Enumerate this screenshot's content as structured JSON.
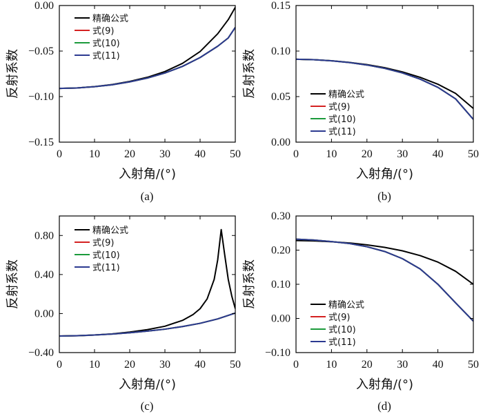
{
  "chart_data": [
    {
      "type": "line",
      "panel_label": "(a)",
      "xlabel": "入射角/(°)",
      "ylabel": "反射系数",
      "xlim": [
        0,
        50
      ],
      "ylim": [
        -0.15,
        0.0
      ],
      "xticks": [
        "0",
        "10",
        "20",
        "30",
        "40",
        "50"
      ],
      "yticks": [
        "−0.15",
        "−0.10",
        "−0.05",
        "0.00"
      ],
      "ytick_values": [
        -0.15,
        -0.1,
        -0.05,
        0.0
      ],
      "legend_position": "top-left",
      "series": [
        {
          "name": "精确公式",
          "color": "#000000",
          "x": [
            0,
            5,
            10,
            15,
            20,
            25,
            30,
            35,
            40,
            45,
            48,
            50
          ],
          "y": [
            -0.091,
            -0.0905,
            -0.089,
            -0.0867,
            -0.0833,
            -0.0788,
            -0.0725,
            -0.0635,
            -0.0505,
            -0.031,
            -0.0155,
            -0.002
          ]
        },
        {
          "name": "式(9)",
          "color": "#d42020",
          "x": [
            0,
            5,
            10,
            15,
            20,
            25,
            30,
            35,
            40,
            45,
            48,
            50
          ],
          "y": [
            -0.091,
            -0.0905,
            -0.0891,
            -0.087,
            -0.0838,
            -0.0797,
            -0.0741,
            -0.0668,
            -0.0571,
            -0.0447,
            -0.0356,
            -0.024
          ]
        },
        {
          "name": "式(10)",
          "color": "#1a9a3a",
          "x": [
            0,
            5,
            10,
            15,
            20,
            25,
            30,
            35,
            40,
            45,
            48,
            50
          ],
          "y": [
            -0.091,
            -0.0905,
            -0.0891,
            -0.087,
            -0.0838,
            -0.0797,
            -0.0741,
            -0.0668,
            -0.0571,
            -0.0447,
            -0.0356,
            -0.024
          ]
        },
        {
          "name": "式(11)",
          "color": "#2b3990",
          "x": [
            0,
            5,
            10,
            15,
            20,
            25,
            30,
            35,
            40,
            45,
            48,
            50
          ],
          "y": [
            -0.091,
            -0.0905,
            -0.0891,
            -0.087,
            -0.0838,
            -0.0797,
            -0.0741,
            -0.0668,
            -0.0571,
            -0.0447,
            -0.0356,
            -0.024
          ]
        }
      ]
    },
    {
      "type": "line",
      "panel_label": "(b)",
      "xlabel": "入射角/(°)",
      "ylabel": "反射系数",
      "xlim": [
        0,
        50
      ],
      "ylim": [
        0.0,
        0.15
      ],
      "xticks": [
        "0",
        "10",
        "20",
        "30",
        "40",
        "50"
      ],
      "yticks": [
        "0.00",
        "0.05",
        "0.10",
        "0.15"
      ],
      "ytick_values": [
        0.0,
        0.05,
        0.1,
        0.15
      ],
      "legend_position": "bottom-left",
      "series": [
        {
          "name": "精确公式",
          "color": "#000000",
          "x": [
            0,
            5,
            10,
            15,
            20,
            25,
            30,
            35,
            40,
            45,
            50
          ],
          "y": [
            0.091,
            0.0905,
            0.0894,
            0.0876,
            0.0851,
            0.0817,
            0.0771,
            0.0712,
            0.0636,
            0.0535,
            0.037
          ]
        },
        {
          "name": "式(9)",
          "color": "#d42020",
          "x": [
            0,
            5,
            10,
            15,
            20,
            25,
            30,
            35,
            40,
            45,
            50
          ],
          "y": [
            0.091,
            0.0905,
            0.0893,
            0.0874,
            0.0847,
            0.081,
            0.076,
            0.0692,
            0.0602,
            0.0475,
            0.025
          ]
        },
        {
          "name": "式(10)",
          "color": "#1a9a3a",
          "x": [
            0,
            5,
            10,
            15,
            20,
            25,
            30,
            35,
            40,
            45,
            50
          ],
          "y": [
            0.091,
            0.0905,
            0.0893,
            0.0874,
            0.0847,
            0.081,
            0.076,
            0.0692,
            0.0602,
            0.0475,
            0.025
          ]
        },
        {
          "name": "式(11)",
          "color": "#2b3990",
          "x": [
            0,
            5,
            10,
            15,
            20,
            25,
            30,
            35,
            40,
            45,
            50
          ],
          "y": [
            0.091,
            0.0905,
            0.0893,
            0.0874,
            0.0847,
            0.081,
            0.076,
            0.0692,
            0.0602,
            0.0475,
            0.025
          ]
        }
      ]
    },
    {
      "type": "line",
      "panel_label": "(c)",
      "xlabel": "入射角/(°)",
      "ylabel": "反射系数",
      "xlim": [
        0,
        50
      ],
      "ylim": [
        -0.4,
        1.0
      ],
      "xticks": [
        "0",
        "10",
        "20",
        "30",
        "40",
        "50"
      ],
      "yticks": [
        "−0.40",
        "0.00",
        "0.40",
        "0.80"
      ],
      "ytick_values": [
        -0.4,
        0.0,
        0.4,
        0.8
      ],
      "legend_position": "top-left",
      "series": [
        {
          "name": "精确公式",
          "color": "#000000",
          "x": [
            0,
            5,
            10,
            15,
            20,
            25,
            30,
            35,
            38,
            40,
            42,
            44,
            45,
            46,
            47,
            48,
            49,
            50
          ],
          "y": [
            -0.23,
            -0.228,
            -0.22,
            -0.208,
            -0.19,
            -0.165,
            -0.13,
            -0.07,
            -0.01,
            0.05,
            0.15,
            0.35,
            0.55,
            0.86,
            0.6,
            0.35,
            0.18,
            0.05
          ]
        },
        {
          "name": "式(9)",
          "color": "#d42020",
          "x": [
            0,
            5,
            10,
            15,
            20,
            25,
            30,
            35,
            40,
            45,
            50
          ],
          "y": [
            -0.23,
            -0.227,
            -0.22,
            -0.21,
            -0.197,
            -0.18,
            -0.16,
            -0.133,
            -0.1,
            -0.055,
            0.005
          ]
        },
        {
          "name": "式(10)",
          "color": "#1a9a3a",
          "x": [
            0,
            5,
            10,
            15,
            20,
            25,
            30,
            35,
            40,
            45,
            50
          ],
          "y": [
            -0.23,
            -0.227,
            -0.22,
            -0.21,
            -0.197,
            -0.18,
            -0.16,
            -0.133,
            -0.1,
            -0.055,
            0.005
          ]
        },
        {
          "name": "式(11)",
          "color": "#2b3990",
          "x": [
            0,
            5,
            10,
            15,
            20,
            25,
            30,
            35,
            40,
            45,
            50
          ],
          "y": [
            -0.23,
            -0.227,
            -0.22,
            -0.21,
            -0.197,
            -0.18,
            -0.16,
            -0.133,
            -0.1,
            -0.055,
            0.005
          ]
        }
      ]
    },
    {
      "type": "line",
      "panel_label": "(d)",
      "xlabel": "入射角/(°)",
      "ylabel": "反射系数",
      "xlim": [
        0,
        50
      ],
      "ylim": [
        -0.1,
        0.3
      ],
      "xticks": [
        "0",
        "10",
        "20",
        "30",
        "40",
        "50"
      ],
      "yticks": [
        "−0.10",
        "0.00",
        "0.10",
        "0.20",
        "0.30"
      ],
      "ytick_values": [
        -0.1,
        0.0,
        0.1,
        0.2,
        0.3
      ],
      "legend_position": "bottom-left",
      "series": [
        {
          "name": "精确公式",
          "color": "#000000",
          "x": [
            0,
            5,
            10,
            15,
            20,
            25,
            30,
            35,
            40,
            45,
            50
          ],
          "y": [
            0.228,
            0.227,
            0.2245,
            0.221,
            0.2155,
            0.208,
            0.198,
            0.184,
            0.165,
            0.138,
            0.1
          ]
        },
        {
          "name": "式(9)",
          "color": "#d42020",
          "x": [
            0,
            5,
            10,
            15,
            20,
            25,
            30,
            35,
            40,
            45,
            50
          ],
          "y": [
            0.232,
            0.2295,
            0.225,
            0.2195,
            0.21,
            0.196,
            0.175,
            0.145,
            0.1,
            0.0455,
            -0.008
          ]
        },
        {
          "name": "式(10)",
          "color": "#1a9a3a",
          "x": [
            0,
            5,
            10,
            15,
            20,
            25,
            30,
            35,
            40,
            45,
            50
          ],
          "y": [
            0.232,
            0.2295,
            0.225,
            0.2195,
            0.21,
            0.196,
            0.175,
            0.145,
            0.1,
            0.0455,
            -0.008
          ]
        },
        {
          "name": "式(11)",
          "color": "#2b3990",
          "x": [
            0,
            5,
            10,
            15,
            20,
            25,
            30,
            35,
            40,
            45,
            50
          ],
          "y": [
            0.232,
            0.2295,
            0.225,
            0.2195,
            0.21,
            0.196,
            0.175,
            0.145,
            0.1,
            0.0455,
            -0.008
          ]
        }
      ]
    }
  ]
}
